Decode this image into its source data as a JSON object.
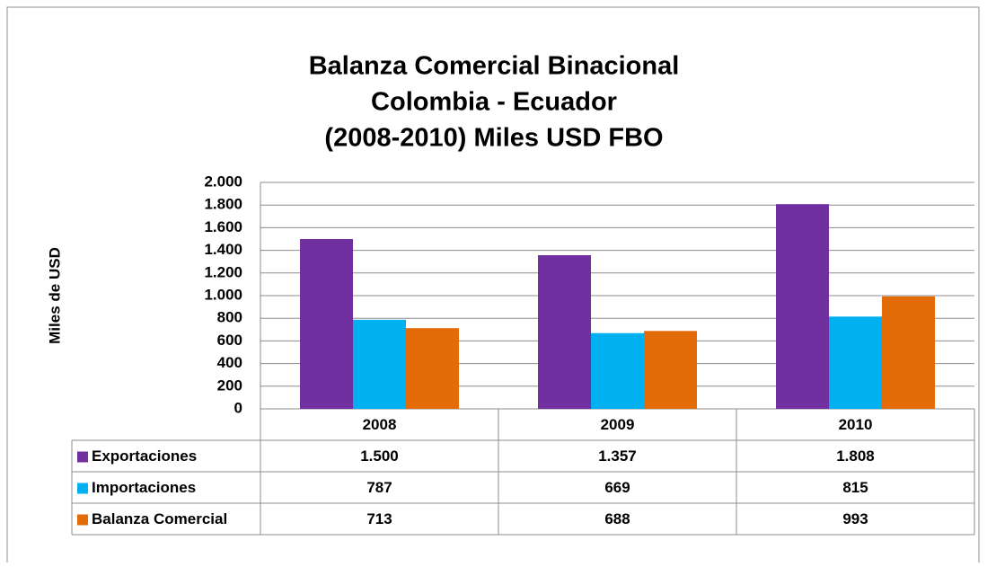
{
  "chart_data": {
    "type": "bar",
    "title": [
      "Balanza Comercial Binacional",
      "Colombia - Ecuador",
      "(2008-2010) Miles USD FBO"
    ],
    "y_label": "Miles de USD",
    "categories": [
      "2008",
      "2009",
      "2010"
    ],
    "series": [
      {
        "name": "Exportaciones",
        "color": "#7030a0",
        "values": [
          1500,
          1357,
          1808
        ],
        "value_labels": [
          "1.500",
          "1.357",
          "1.808"
        ]
      },
      {
        "name": "Importaciones",
        "color": "#00b0f0",
        "values": [
          787,
          669,
          815
        ]
      },
      {
        "name": "Balanza Comercial",
        "color": "#e36c09",
        "values": [
          713,
          688,
          993
        ]
      }
    ],
    "ylim": [
      0,
      2000
    ],
    "yticks": [
      0,
      200,
      400,
      600,
      800,
      {
        "value": 1000,
        "label": "1.000"
      },
      {
        "value": 1200,
        "label": "1.200"
      },
      {
        "value": 1400,
        "label": "1.400"
      },
      {
        "value": 1600,
        "label": "1.600"
      },
      {
        "value": 1800,
        "label": "1.800"
      },
      {
        "value": 2000,
        "label": "2.000"
      }
    ],
    "grid": true
  }
}
